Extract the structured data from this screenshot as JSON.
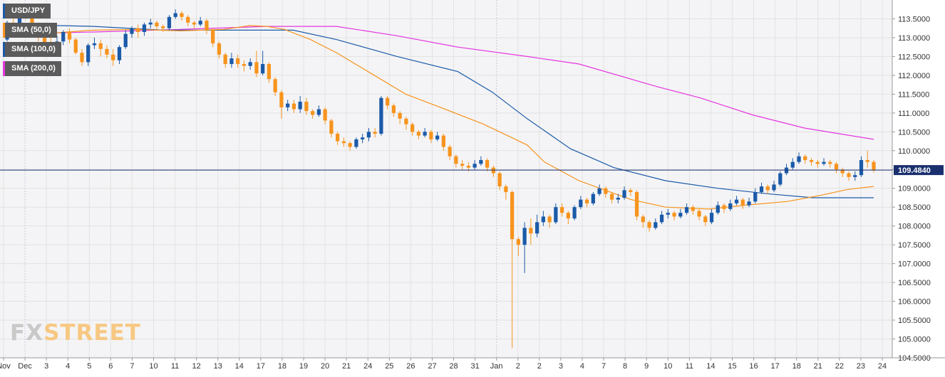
{
  "colors": {
    "background": "#f4f4f6",
    "grid": "#e2e2e2",
    "bull": "#1b5aa8",
    "bear": "#f7941d",
    "sma50": "#f7941d",
    "sma100": "#1b5aa8",
    "sma200": "#e535e0",
    "price_line": "#1a2f6e"
  },
  "legend": [
    {
      "label": "USD/JPY",
      "color": "#1b5aa8"
    },
    {
      "label": "SMA (50,0)",
      "color": "#f7941d"
    },
    {
      "label": "SMA (100,0)",
      "color": "#1b5aa8"
    },
    {
      "label": "SMA (200,0)",
      "color": "#e535e0"
    }
  ],
  "watermark": {
    "part1": "FX",
    "part2": "STREET"
  },
  "chart_data": {
    "type": "candlestick",
    "symbol": "USD/JPY",
    "current_price": 109.484,
    "current_price_label": "109.4840",
    "ylim": [
      104.5,
      114.0
    ],
    "y_ticks": [
      "104.5000",
      "105.0000",
      "105.5000",
      "106.0000",
      "106.5000",
      "107.0000",
      "107.5000",
      "108.0000",
      "108.5000",
      "109.0000",
      "109.5000",
      "110.0000",
      "110.5000",
      "111.0000",
      "111.5000",
      "112.0000",
      "112.5000",
      "113.0000",
      "113.5000"
    ],
    "x_ticks": [
      "Nov",
      "Dec",
      "3",
      "4",
      "5",
      "6",
      "7",
      "10",
      "11",
      "12",
      "13",
      "14",
      "17",
      "18",
      "19",
      "20",
      "21",
      "24",
      "25",
      "26",
      "27",
      "28",
      "31",
      "Jan",
      "2",
      "2",
      "3",
      "4",
      "7",
      "8",
      "9",
      "10",
      "11",
      "14",
      "15",
      "16",
      "17",
      "18",
      "21",
      "22",
      "23",
      "24"
    ],
    "grid": true,
    "legend_position": "top-left",
    "candles": [
      [
        112.95,
        113.4,
        113.45,
        112.9
      ],
      [
        113.4,
        113.3,
        113.5,
        113.2
      ],
      [
        113.3,
        113.55,
        113.6,
        113.25
      ],
      [
        113.55,
        113.6,
        113.72,
        113.5
      ],
      [
        113.6,
        113.35,
        113.65,
        113.3
      ],
      [
        113.35,
        113.0,
        113.4,
        112.9
      ],
      [
        113.0,
        112.85,
        113.1,
        112.7
      ],
      [
        112.85,
        112.75,
        113.0,
        112.6
      ],
      [
        112.75,
        112.9,
        113.05,
        112.6
      ],
      [
        112.9,
        113.15,
        113.2,
        112.8
      ],
      [
        113.15,
        112.95,
        113.25,
        112.85
      ],
      [
        112.95,
        112.6,
        113.0,
        112.55
      ],
      [
        112.6,
        112.35,
        112.7,
        112.25
      ],
      [
        112.35,
        112.8,
        112.85,
        112.25
      ],
      [
        112.8,
        112.85,
        113.0,
        112.7
      ],
      [
        112.85,
        112.7,
        112.95,
        112.5
      ],
      [
        112.7,
        112.55,
        112.8,
        112.45
      ],
      [
        112.55,
        112.4,
        112.7,
        112.25
      ],
      [
        112.4,
        112.75,
        112.8,
        112.3
      ],
      [
        112.75,
        113.1,
        113.2,
        112.7
      ],
      [
        113.1,
        113.25,
        113.3,
        113.0
      ],
      [
        113.25,
        113.15,
        113.35,
        113.0
      ],
      [
        113.15,
        113.35,
        113.4,
        113.05
      ],
      [
        113.35,
        113.4,
        113.5,
        113.25
      ],
      [
        113.4,
        113.3,
        113.45,
        113.2
      ],
      [
        113.3,
        113.25,
        113.35,
        113.15
      ],
      [
        113.25,
        113.55,
        113.6,
        113.2
      ],
      [
        113.55,
        113.65,
        113.75,
        113.5
      ],
      [
        113.65,
        113.55,
        113.7,
        113.45
      ],
      [
        113.55,
        113.4,
        113.6,
        113.3
      ],
      [
        113.4,
        113.35,
        113.45,
        113.25
      ],
      [
        113.35,
        113.45,
        113.55,
        113.3
      ],
      [
        113.45,
        113.2,
        113.5,
        113.1
      ],
      [
        113.2,
        112.85,
        113.25,
        112.75
      ],
      [
        112.85,
        112.55,
        112.9,
        112.45
      ],
      [
        112.55,
        112.3,
        112.6,
        112.2
      ],
      [
        112.3,
        112.45,
        112.6,
        112.2
      ],
      [
        112.45,
        112.3,
        112.55,
        112.2
      ],
      [
        112.3,
        112.25,
        112.4,
        112.1
      ],
      [
        112.25,
        112.35,
        112.45,
        112.15
      ],
      [
        112.35,
        112.05,
        112.65,
        111.95
      ],
      [
        112.05,
        112.3,
        112.65,
        112.0
      ],
      [
        112.3,
        111.9,
        112.35,
        111.8
      ],
      [
        111.9,
        111.55,
        111.95,
        111.45
      ],
      [
        111.55,
        111.15,
        111.6,
        110.85
      ],
      [
        111.15,
        111.25,
        111.35,
        111.05
      ],
      [
        111.25,
        111.1,
        111.35,
        111.0
      ],
      [
        111.1,
        111.3,
        111.45,
        111.0
      ],
      [
        111.3,
        111.05,
        111.4,
        110.95
      ],
      [
        111.05,
        110.95,
        111.1,
        110.85
      ],
      [
        110.95,
        111.1,
        111.2,
        110.9
      ],
      [
        111.1,
        110.8,
        111.15,
        110.7
      ],
      [
        110.8,
        110.45,
        110.85,
        110.35
      ],
      [
        110.45,
        110.25,
        110.5,
        110.15
      ],
      [
        110.25,
        110.2,
        110.35,
        110.1
      ],
      [
        110.2,
        110.1,
        110.25,
        110.0
      ],
      [
        110.1,
        110.3,
        110.35,
        110.05
      ],
      [
        110.3,
        110.35,
        110.45,
        110.2
      ],
      [
        110.35,
        110.5,
        110.6,
        110.25
      ],
      [
        110.5,
        110.45,
        110.6,
        110.35
      ],
      [
        110.45,
        111.4,
        111.45,
        110.4
      ],
      [
        111.4,
        111.2,
        111.45,
        111.1
      ],
      [
        111.2,
        111.0,
        111.25,
        110.9
      ],
      [
        111.0,
        110.85,
        111.05,
        110.7
      ],
      [
        110.85,
        110.7,
        110.9,
        110.55
      ],
      [
        110.7,
        110.5,
        110.75,
        110.4
      ],
      [
        110.5,
        110.4,
        110.55,
        110.3
      ],
      [
        110.4,
        110.5,
        110.6,
        110.35
      ],
      [
        110.5,
        110.3,
        110.55,
        110.2
      ],
      [
        110.3,
        110.4,
        110.5,
        110.25
      ],
      [
        110.4,
        110.1,
        110.45,
        110.0
      ],
      [
        110.1,
        109.85,
        110.15,
        109.75
      ],
      [
        109.85,
        109.65,
        109.9,
        109.55
      ],
      [
        109.65,
        109.6,
        109.75,
        109.5
      ],
      [
        109.6,
        109.55,
        109.7,
        109.45
      ],
      [
        109.55,
        109.65,
        109.75,
        109.5
      ],
      [
        109.65,
        109.75,
        109.85,
        109.6
      ],
      [
        109.75,
        109.55,
        109.8,
        109.45
      ],
      [
        109.55,
        109.4,
        109.6,
        109.3
      ],
      [
        109.4,
        109.05,
        109.45,
        108.95
      ],
      [
        109.05,
        108.9,
        109.1,
        108.7
      ],
      [
        108.9,
        107.65,
        108.95,
        104.75
      ],
      [
        107.65,
        107.5,
        107.7,
        107.2
      ],
      [
        107.5,
        107.95,
        108.1,
        106.75
      ],
      [
        107.95,
        107.8,
        108.2,
        107.5
      ],
      [
        107.8,
        108.1,
        108.3,
        107.7
      ],
      [
        108.1,
        108.25,
        108.4,
        108.0
      ],
      [
        108.25,
        108.1,
        108.3,
        107.95
      ],
      [
        108.1,
        108.5,
        108.6,
        108.05
      ],
      [
        108.5,
        108.35,
        108.6,
        108.25
      ],
      [
        108.35,
        108.2,
        108.4,
        108.05
      ],
      [
        108.2,
        108.5,
        108.55,
        108.15
      ],
      [
        108.5,
        108.7,
        108.8,
        108.45
      ],
      [
        108.7,
        108.6,
        108.75,
        108.5
      ],
      [
        108.6,
        108.85,
        108.9,
        108.55
      ],
      [
        108.85,
        109.0,
        109.1,
        108.8
      ],
      [
        109.0,
        108.85,
        109.05,
        108.75
      ],
      [
        108.85,
        108.7,
        108.9,
        108.6
      ],
      [
        108.7,
        108.75,
        108.85,
        108.6
      ],
      [
        108.75,
        108.95,
        109.05,
        108.7
      ],
      [
        108.95,
        108.9,
        109.0,
        108.8
      ],
      [
        108.9,
        108.25,
        108.95,
        108.15
      ],
      [
        108.25,
        108.1,
        108.3,
        107.95
      ],
      [
        108.1,
        107.95,
        108.15,
        107.85
      ],
      [
        107.95,
        108.1,
        108.2,
        107.9
      ],
      [
        108.1,
        108.3,
        108.4,
        108.05
      ],
      [
        108.3,
        108.35,
        108.45,
        108.2
      ],
      [
        108.35,
        108.25,
        108.4,
        108.15
      ],
      [
        108.25,
        108.35,
        108.45,
        108.2
      ],
      [
        108.35,
        108.5,
        108.6,
        108.3
      ],
      [
        108.5,
        108.4,
        108.55,
        108.3
      ],
      [
        108.4,
        108.25,
        108.45,
        108.15
      ],
      [
        108.25,
        108.1,
        108.3,
        108.0
      ],
      [
        108.1,
        108.35,
        108.45,
        108.05
      ],
      [
        108.35,
        108.55,
        108.65,
        108.3
      ],
      [
        108.55,
        108.45,
        108.6,
        108.35
      ],
      [
        108.45,
        108.6,
        108.7,
        108.4
      ],
      [
        108.6,
        108.7,
        108.8,
        108.55
      ],
      [
        108.7,
        108.55,
        108.75,
        108.45
      ],
      [
        108.55,
        108.65,
        108.75,
        108.5
      ],
      [
        108.65,
        108.9,
        109.0,
        108.6
      ],
      [
        108.9,
        109.05,
        109.15,
        108.85
      ],
      [
        109.05,
        108.95,
        109.1,
        108.85
      ],
      [
        108.95,
        109.1,
        109.2,
        108.9
      ],
      [
        109.1,
        109.4,
        109.45,
        109.05
      ],
      [
        109.4,
        109.55,
        109.65,
        109.35
      ],
      [
        109.55,
        109.7,
        109.8,
        109.5
      ],
      [
        109.7,
        109.85,
        109.95,
        109.65
      ],
      [
        109.85,
        109.75,
        109.9,
        109.65
      ],
      [
        109.75,
        109.7,
        109.8,
        109.6
      ],
      [
        109.7,
        109.65,
        109.75,
        109.55
      ],
      [
        109.65,
        109.7,
        109.8,
        109.6
      ],
      [
        109.7,
        109.65,
        109.75,
        109.55
      ],
      [
        109.65,
        109.5,
        109.7,
        109.4
      ],
      [
        109.5,
        109.4,
        109.55,
        109.3
      ],
      [
        109.4,
        109.3,
        109.45,
        109.2
      ],
      [
        109.3,
        109.35,
        109.45,
        109.2
      ],
      [
        109.35,
        109.75,
        109.85,
        109.3
      ],
      [
        109.75,
        109.7,
        110.0,
        109.55
      ],
      [
        109.7,
        109.48,
        109.75,
        109.42
      ]
    ],
    "sma50": [
      [
        0,
        113.05
      ],
      [
        0.05,
        113.12
      ],
      [
        0.1,
        113.2
      ],
      [
        0.15,
        113.22
      ],
      [
        0.2,
        113.18
      ],
      [
        0.25,
        113.22
      ],
      [
        0.28,
        113.32
      ],
      [
        0.3,
        113.3
      ],
      [
        0.32,
        113.22
      ],
      [
        0.35,
        112.95
      ],
      [
        0.38,
        112.6
      ],
      [
        0.42,
        112.05
      ],
      [
        0.46,
        111.5
      ],
      [
        0.5,
        111.15
      ],
      [
        0.55,
        110.7
      ],
      [
        0.6,
        110.15
      ],
      [
        0.62,
        109.7
      ],
      [
        0.66,
        109.2
      ],
      [
        0.72,
        108.7
      ],
      [
        0.76,
        108.5
      ],
      [
        0.81,
        108.45
      ],
      [
        0.85,
        108.55
      ],
      [
        0.9,
        108.65
      ],
      [
        0.94,
        108.82
      ],
      [
        0.97,
        108.97
      ],
      [
        1.0,
        109.05
      ]
    ],
    "sma100": [
      [
        0,
        113.35
      ],
      [
        0.1,
        113.3
      ],
      [
        0.18,
        113.2
      ],
      [
        0.28,
        113.2
      ],
      [
        0.33,
        113.2
      ],
      [
        0.38,
        112.95
      ],
      [
        0.45,
        112.5
      ],
      [
        0.52,
        112.1
      ],
      [
        0.56,
        111.55
      ],
      [
        0.6,
        110.85
      ],
      [
        0.65,
        110.05
      ],
      [
        0.7,
        109.55
      ],
      [
        0.76,
        109.2
      ],
      [
        0.82,
        109.0
      ],
      [
        0.88,
        108.85
      ],
      [
        0.93,
        108.75
      ],
      [
        1.0,
        108.75
      ]
    ],
    "sma200": [
      [
        0,
        113.1
      ],
      [
        0.1,
        113.15
      ],
      [
        0.2,
        113.22
      ],
      [
        0.3,
        113.3
      ],
      [
        0.38,
        113.3
      ],
      [
        0.45,
        113.05
      ],
      [
        0.52,
        112.75
      ],
      [
        0.6,
        112.5
      ],
      [
        0.66,
        112.3
      ],
      [
        0.75,
        111.7
      ],
      [
        0.8,
        111.4
      ],
      [
        0.86,
        110.95
      ],
      [
        0.92,
        110.6
      ],
      [
        1.0,
        110.3
      ]
    ]
  }
}
